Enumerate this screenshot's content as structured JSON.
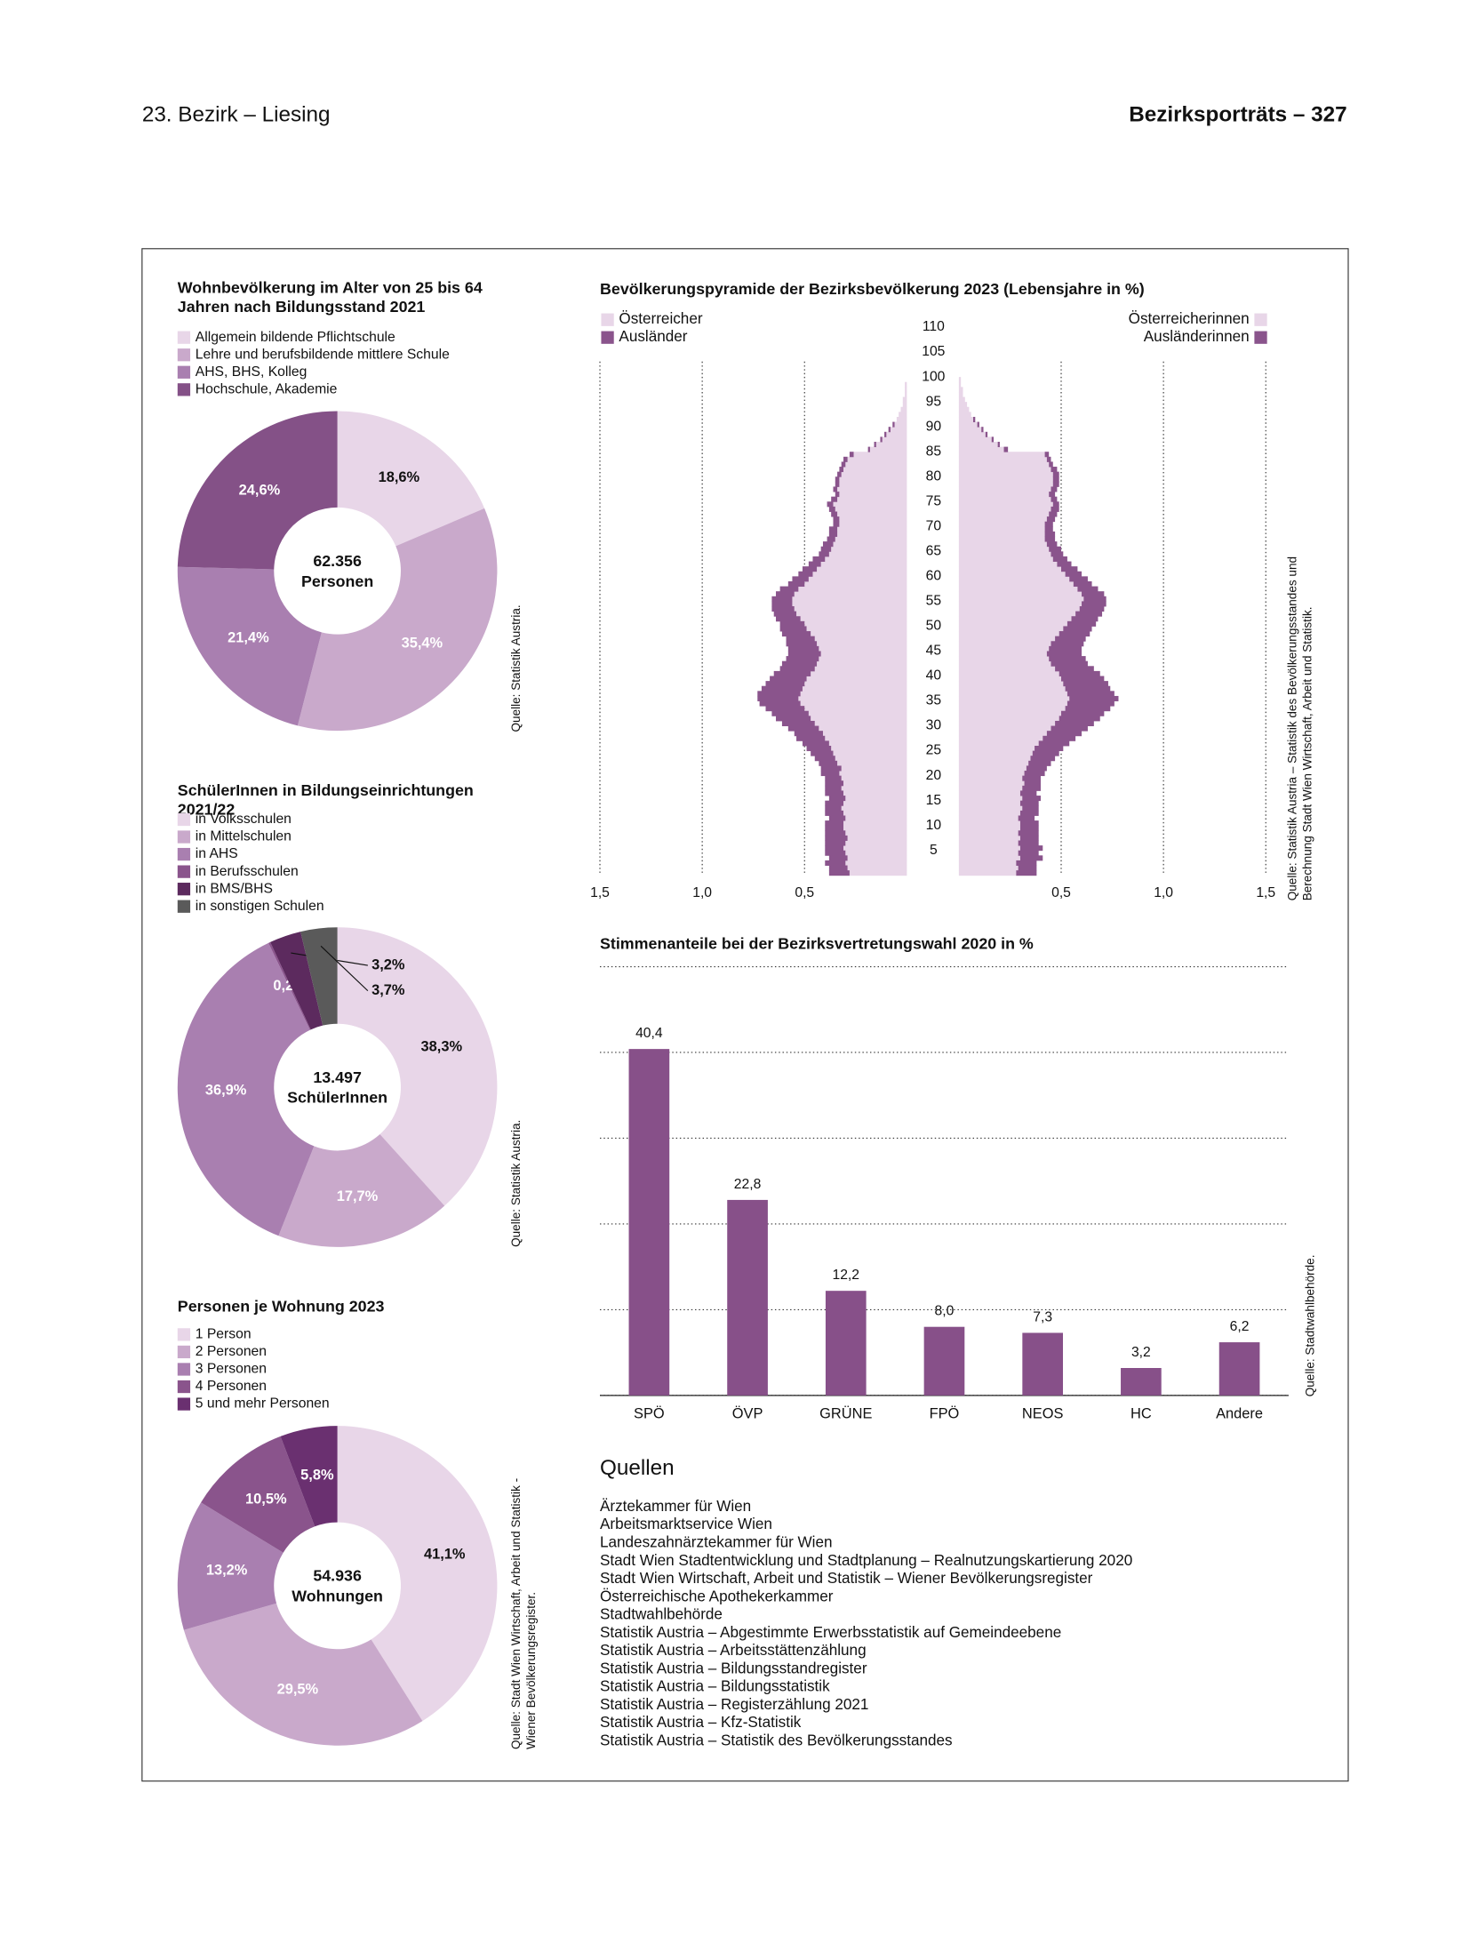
{
  "header": {
    "left": "23. Bezirk – Liesing",
    "right": "Bezirksporträts – 327"
  },
  "chart_data": [
    {
      "type": "pie",
      "title": "Wohnbevölkerung im Alter von 25 bis 64 Jahren nach Bildungsstand 2021",
      "categories": [
        "Allgemein bildende Pflichtschule",
        "Lehre und berufsbildende mittlere Schule",
        "AHS, BHS, Kolleg",
        "Hochschule, Akademie"
      ],
      "values": [
        18.6,
        35.4,
        21.4,
        24.6
      ],
      "value_labels": [
        "18,6%",
        "35,4%",
        "21,4%",
        "24,6%"
      ],
      "colors": [
        "#e8d6e8",
        "#c9a9cb",
        "#a97fb0",
        "#845187"
      ],
      "center": {
        "value": 62356,
        "label": "62.356"
      },
      "center_text": "Personen",
      "source": "Quelle: Statistik Austria."
    },
    {
      "type": "pie",
      "title": "SchülerInnen in Bildungseinrichtungen 2021/22",
      "categories": [
        "in Volksschulen",
        "in Mittelschulen",
        "in AHS",
        "in Berufsschulen",
        "in BMS/BHS",
        "in sonstigen Schulen"
      ],
      "values": [
        38.3,
        17.7,
        36.9,
        0.2,
        3.2,
        3.7
      ],
      "value_labels": [
        "38,3%",
        "17,7%",
        "36,9%",
        "0,2%",
        "3,2%",
        "3,7%"
      ],
      "colors": [
        "#e8d6e8",
        "#c9a9cb",
        "#a97fb0",
        "#8a548c",
        "#5c2a5e",
        "#5a5a5a"
      ],
      "center": {
        "value": 13497,
        "label": "13.497"
      },
      "center_text": "SchülerInnen",
      "source": "Quelle: Statistik Austria."
    },
    {
      "type": "pie",
      "title": "Personen je Wohnung 2023",
      "categories": [
        "1 Person",
        "2 Personen",
        "3 Personen",
        "4 Personen",
        "5 und mehr Personen"
      ],
      "values": [
        41.1,
        29.5,
        13.2,
        10.5,
        5.8
      ],
      "value_labels": [
        "41,1%",
        "29,5%",
        "13,2%",
        "10,5%",
        "5,8%"
      ],
      "colors": [
        "#e8d6e8",
        "#c9a9cb",
        "#a97fb0",
        "#8a548c",
        "#6a3070"
      ],
      "center": {
        "value": 54936,
        "label": "54.936"
      },
      "center_text": "Wohnungen",
      "source": "Quelle: Stadt Wien Wirtschaft, Arbeit und Statistik - Wiener Bevölkerungsregister."
    },
    {
      "type": "pyramid",
      "title": "Bevölkerungspyramide der Bezirksbevölkerung 2023 (Lebensjahre in %)",
      "y": [
        0,
        1,
        2,
        3,
        4,
        5,
        6,
        7,
        8,
        9,
        10,
        11,
        12,
        13,
        14,
        15,
        16,
        17,
        18,
        19,
        20,
        21,
        22,
        23,
        24,
        25,
        26,
        27,
        28,
        29,
        30,
        31,
        32,
        33,
        34,
        35,
        36,
        37,
        38,
        39,
        40,
        41,
        42,
        43,
        44,
        45,
        46,
        47,
        48,
        49,
        50,
        51,
        52,
        53,
        54,
        55,
        56,
        57,
        58,
        59,
        60,
        61,
        62,
        63,
        64,
        65,
        66,
        67,
        68,
        69,
        70,
        71,
        72,
        73,
        74,
        75,
        76,
        77,
        78,
        79,
        80,
        81,
        82,
        83,
        84,
        85,
        86,
        87,
        88,
        89,
        90,
        91,
        92,
        93,
        94,
        95,
        96,
        97,
        98,
        99,
        100
      ],
      "ylim": [
        0,
        112
      ],
      "yticks": [
        5,
        10,
        15,
        20,
        25,
        30,
        35,
        40,
        45,
        50,
        55,
        60,
        65,
        70,
        75,
        80,
        85,
        90,
        95,
        100,
        105,
        110
      ],
      "xlim": [
        0,
        1.5
      ],
      "xticks": [
        {
          "value": 0.5,
          "label": "0,5"
        },
        {
          "value": 1,
          "label": "1,0"
        },
        {
          "value": 1.5,
          "label": "1,5"
        }
      ],
      "series": [
        {
          "name": "Österreicher",
          "color": "#e8d6e8",
          "side": "left",
          "values": [
            0.28,
            0.29,
            0.3,
            0.29,
            0.3,
            0.31,
            0.3,
            0.29,
            0.3,
            0.31,
            0.31,
            0.3,
            0.31,
            0.32,
            0.31,
            0.3,
            0.31,
            0.32,
            0.31,
            0.32,
            0.33,
            0.32,
            0.34,
            0.35,
            0.36,
            0.37,
            0.38,
            0.4,
            0.41,
            0.43,
            0.45,
            0.47,
            0.48,
            0.5,
            0.52,
            0.53,
            0.52,
            0.51,
            0.5,
            0.49,
            0.47,
            0.45,
            0.44,
            0.43,
            0.42,
            0.43,
            0.44,
            0.45,
            0.47,
            0.49,
            0.5,
            0.52,
            0.54,
            0.55,
            0.56,
            0.56,
            0.55,
            0.53,
            0.5,
            0.48,
            0.46,
            0.44,
            0.42,
            0.4,
            0.38,
            0.37,
            0.36,
            0.35,
            0.34,
            0.34,
            0.33,
            0.33,
            0.34,
            0.35,
            0.36,
            0.34,
            0.33,
            0.34,
            0.33,
            0.33,
            0.32,
            0.31,
            0.3,
            0.29,
            0.26,
            0.18,
            0.15,
            0.12,
            0.1,
            0.08,
            0.06,
            0.05,
            0.04,
            0.03,
            0.02,
            0.02,
            0.01,
            0.01,
            0.01,
            0,
            0
          ]
        },
        {
          "name": "Ausländer",
          "color": "#8a548c",
          "side": "left",
          "values": [
            0.1,
            0.09,
            0.1,
            0.09,
            0.1,
            0.09,
            0.1,
            0.11,
            0.1,
            0.09,
            0.09,
            0.08,
            0.09,
            0.08,
            0.09,
            0.08,
            0.09,
            0.08,
            0.09,
            0.08,
            0.09,
            0.1,
            0.09,
            0.1,
            0.11,
            0.12,
            0.13,
            0.14,
            0.14,
            0.15,
            0.16,
            0.17,
            0.18,
            0.19,
            0.2,
            0.2,
            0.21,
            0.2,
            0.19,
            0.18,
            0.18,
            0.17,
            0.17,
            0.16,
            0.16,
            0.15,
            0.15,
            0.14,
            0.14,
            0.13,
            0.12,
            0.12,
            0.11,
            0.11,
            0.1,
            0.1,
            0.09,
            0.09,
            0.08,
            0.08,
            0.07,
            0.07,
            0.06,
            0.06,
            0.05,
            0.05,
            0.05,
            0.04,
            0.04,
            0.04,
            0.03,
            0.03,
            0.03,
            0.03,
            0.03,
            0.03,
            0.02,
            0.02,
            0.02,
            0.02,
            0.02,
            0.02,
            0.02,
            0.02,
            0.02,
            0.01,
            0.01,
            0.01,
            0.01,
            0.01,
            0.01,
            0,
            0,
            0,
            0,
            0,
            0,
            0,
            0,
            0,
            0
          ]
        },
        {
          "name": "Österreicherinnen",
          "color": "#e8d6e8",
          "side": "right",
          "values": [
            0.28,
            0.29,
            0.28,
            0.3,
            0.29,
            0.3,
            0.29,
            0.3,
            0.29,
            0.3,
            0.3,
            0.29,
            0.3,
            0.31,
            0.3,
            0.31,
            0.3,
            0.31,
            0.32,
            0.31,
            0.32,
            0.33,
            0.34,
            0.35,
            0.36,
            0.37,
            0.39,
            0.41,
            0.43,
            0.45,
            0.47,
            0.49,
            0.5,
            0.52,
            0.53,
            0.54,
            0.53,
            0.52,
            0.51,
            0.5,
            0.49,
            0.47,
            0.45,
            0.44,
            0.43,
            0.44,
            0.45,
            0.47,
            0.49,
            0.51,
            0.53,
            0.55,
            0.57,
            0.59,
            0.6,
            0.61,
            0.6,
            0.58,
            0.56,
            0.54,
            0.52,
            0.5,
            0.48,
            0.46,
            0.45,
            0.44,
            0.43,
            0.42,
            0.42,
            0.42,
            0.42,
            0.43,
            0.44,
            0.45,
            0.46,
            0.45,
            0.44,
            0.45,
            0.46,
            0.46,
            0.46,
            0.45,
            0.44,
            0.43,
            0.42,
            0.22,
            0.19,
            0.16,
            0.13,
            0.11,
            0.09,
            0.07,
            0.06,
            0.05,
            0.04,
            0.03,
            0.02,
            0.02,
            0.01,
            0.01,
            0
          ]
        },
        {
          "name": "Ausländerinnen",
          "color": "#8a548c",
          "side": "right",
          "values": [
            0.1,
            0.09,
            0.1,
            0.11,
            0.1,
            0.11,
            0.1,
            0.09,
            0.1,
            0.09,
            0.09,
            0.08,
            0.09,
            0.08,
            0.09,
            0.09,
            0.08,
            0.09,
            0.08,
            0.09,
            0.1,
            0.1,
            0.11,
            0.12,
            0.13,
            0.14,
            0.15,
            0.16,
            0.17,
            0.18,
            0.19,
            0.2,
            0.21,
            0.22,
            0.23,
            0.24,
            0.23,
            0.22,
            0.22,
            0.21,
            0.2,
            0.19,
            0.18,
            0.18,
            0.17,
            0.16,
            0.16,
            0.15,
            0.15,
            0.14,
            0.14,
            0.13,
            0.13,
            0.12,
            0.12,
            0.11,
            0.11,
            0.1,
            0.09,
            0.09,
            0.08,
            0.08,
            0.07,
            0.07,
            0.06,
            0.06,
            0.05,
            0.05,
            0.05,
            0.04,
            0.04,
            0.04,
            0.04,
            0.04,
            0.03,
            0.03,
            0.03,
            0.03,
            0.03,
            0.03,
            0.03,
            0.03,
            0.02,
            0.02,
            0.02,
            0.02,
            0.01,
            0.01,
            0.01,
            0.01,
            0.01,
            0.01,
            0,
            0,
            0,
            0,
            0,
            0,
            0,
            0,
            0
          ]
        }
      ],
      "source": "Quelle: Statistik Austria – Statistik des Bevölkerungsstandes und Berechnung Stadt Wien Wirtschaft, Arbeit und Statistik."
    },
    {
      "type": "bar",
      "title": "Stimmenanteile bei der Bezirksvertretungswahl 2020 in %",
      "categories": [
        "SPÖ",
        "ÖVP",
        "GRÜNE",
        "FPÖ",
        "NEOS",
        "HC",
        "Andere"
      ],
      "values": [
        40.4,
        22.8,
        12.2,
        8.0,
        7.3,
        3.2,
        6.2
      ],
      "value_labels": [
        "40,4",
        "22,8",
        "12,2",
        "8,0",
        "7,3",
        "3,2",
        "6,2"
      ],
      "color": "#875089",
      "ylim": [
        0,
        50
      ],
      "yticks": [
        0,
        10,
        20,
        30,
        40,
        50
      ],
      "grid": true,
      "source": "Quelle: Stadtwahlbehörde."
    }
  ],
  "sources": {
    "title": "Quellen",
    "items": [
      "Ärztekammer für Wien",
      "Arbeitsmarktservice Wien",
      "Landeszahnärztekammer für Wien",
      "Stadt Wien Stadtentwicklung und Stadtplanung – Realnutzungskartierung 2020",
      "Stadt Wien Wirtschaft, Arbeit und Statistik – Wiener Bevölkerungsregister",
      "Österreichische Apothekerkammer",
      "Stadtwahlbehörde",
      "Statistik Austria – Abgestimmte Erwerbsstatistik auf Gemeindeebene",
      "Statistik Austria – Arbeitsstättenzählung",
      "Statistik Austria – Bildungsstandregister",
      "Statistik Austria – Bildungsstatistik",
      "Statistik Austria – Registerzählung 2021",
      "Statistik Austria – Kfz-Statistik",
      "Statistik Austria – Statistik des Bevölkerungsstandes"
    ]
  }
}
